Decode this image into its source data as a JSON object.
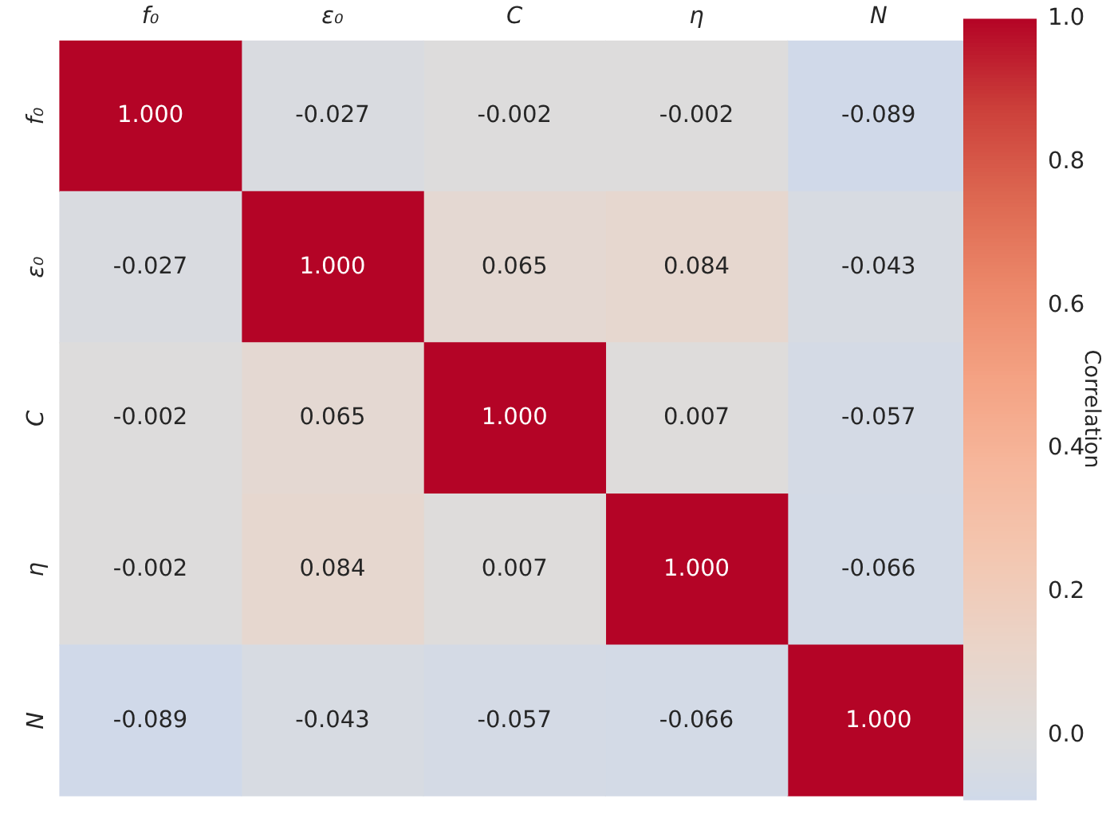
{
  "chart_data": {
    "type": "heatmap",
    "clabel": "Correlation",
    "categories": [
      "f₀",
      "ε₀",
      "C",
      "η",
      "N"
    ],
    "y_categories": [
      "f₀",
      "ε₀",
      "C",
      "η",
      "N"
    ],
    "cells": [
      [
        1.0,
        -0.027,
        -0.002,
        -0.002,
        -0.089
      ],
      [
        -0.027,
        1.0,
        0.065,
        0.084,
        -0.043
      ],
      [
        -0.002,
        0.065,
        1.0,
        0.007,
        -0.057
      ],
      [
        -0.002,
        0.084,
        0.007,
        1.0,
        -0.066
      ],
      [
        -0.089,
        -0.043,
        -0.057,
        -0.066,
        1.0
      ]
    ],
    "cell_labels": [
      [
        "1.000",
        "-0.027",
        "-0.002",
        "-0.002",
        "-0.089"
      ],
      [
        "-0.027",
        "1.000",
        "0.065",
        "0.084",
        "-0.043"
      ],
      [
        "-0.002",
        "0.065",
        "1.000",
        "0.007",
        "-0.057"
      ],
      [
        "-0.002",
        "0.084",
        "0.007",
        "1.000",
        "-0.066"
      ],
      [
        "-0.089",
        "-0.043",
        "-0.057",
        "-0.066",
        "1.000"
      ]
    ],
    "clim": [
      -0.089,
      1.0
    ],
    "cticks": [
      {
        "value": 0,
        "label": "0.0"
      },
      {
        "value": 0.2,
        "label": "0.2"
      },
      {
        "value": 0.4,
        "label": "0.4"
      },
      {
        "value": 0.6,
        "label": "0.6"
      },
      {
        "value": 0.8,
        "label": "0.8"
      },
      {
        "value": 1.0,
        "label": "1.0"
      }
    ]
  }
}
